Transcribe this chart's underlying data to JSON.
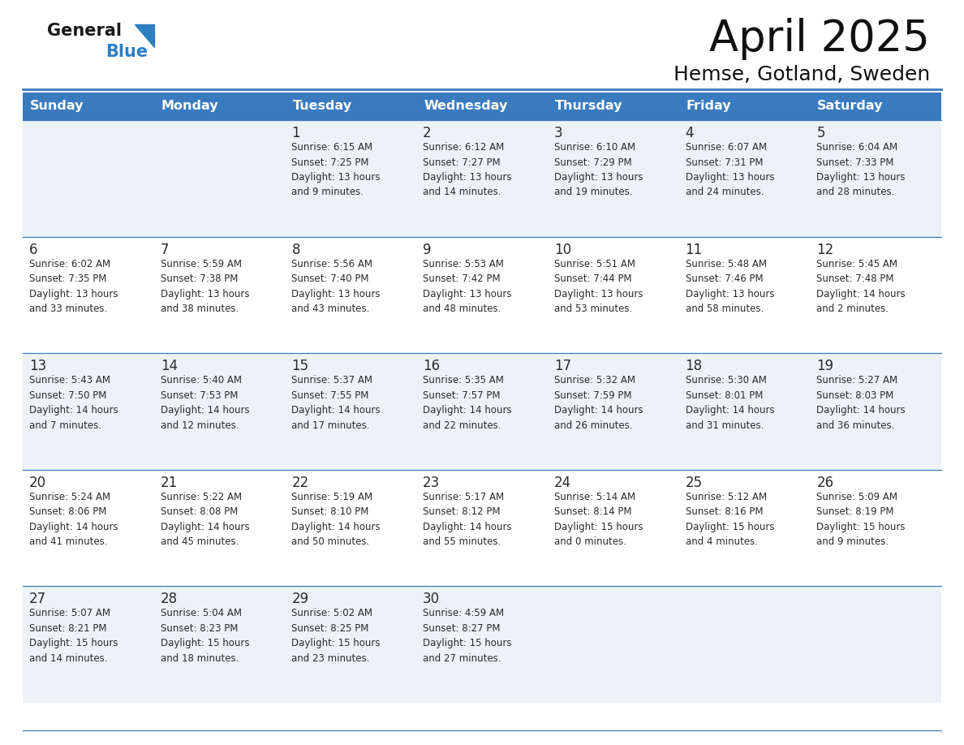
{
  "title": "April 2025",
  "subtitle": "Hemse, Gotland, Sweden",
  "header_bg": "#3a7bbf",
  "header_text": "#ffffff",
  "row_bg_light": "#eef2f7",
  "row_bg_white": "#ffffff",
  "border_color": "#3a7bbf",
  "text_color": "#2a2a2a",
  "days_of_week": [
    "Sunday",
    "Monday",
    "Tuesday",
    "Wednesday",
    "Thursday",
    "Friday",
    "Saturday"
  ],
  "weeks": [
    [
      {
        "day": "",
        "info": ""
      },
      {
        "day": "",
        "info": ""
      },
      {
        "day": "1",
        "info": "Sunrise: 6:15 AM\nSunset: 7:25 PM\nDaylight: 13 hours\nand 9 minutes."
      },
      {
        "day": "2",
        "info": "Sunrise: 6:12 AM\nSunset: 7:27 PM\nDaylight: 13 hours\nand 14 minutes."
      },
      {
        "day": "3",
        "info": "Sunrise: 6:10 AM\nSunset: 7:29 PM\nDaylight: 13 hours\nand 19 minutes."
      },
      {
        "day": "4",
        "info": "Sunrise: 6:07 AM\nSunset: 7:31 PM\nDaylight: 13 hours\nand 24 minutes."
      },
      {
        "day": "5",
        "info": "Sunrise: 6:04 AM\nSunset: 7:33 PM\nDaylight: 13 hours\nand 28 minutes."
      }
    ],
    [
      {
        "day": "6",
        "info": "Sunrise: 6:02 AM\nSunset: 7:35 PM\nDaylight: 13 hours\nand 33 minutes."
      },
      {
        "day": "7",
        "info": "Sunrise: 5:59 AM\nSunset: 7:38 PM\nDaylight: 13 hours\nand 38 minutes."
      },
      {
        "day": "8",
        "info": "Sunrise: 5:56 AM\nSunset: 7:40 PM\nDaylight: 13 hours\nand 43 minutes."
      },
      {
        "day": "9",
        "info": "Sunrise: 5:53 AM\nSunset: 7:42 PM\nDaylight: 13 hours\nand 48 minutes."
      },
      {
        "day": "10",
        "info": "Sunrise: 5:51 AM\nSunset: 7:44 PM\nDaylight: 13 hours\nand 53 minutes."
      },
      {
        "day": "11",
        "info": "Sunrise: 5:48 AM\nSunset: 7:46 PM\nDaylight: 13 hours\nand 58 minutes."
      },
      {
        "day": "12",
        "info": "Sunrise: 5:45 AM\nSunset: 7:48 PM\nDaylight: 14 hours\nand 2 minutes."
      }
    ],
    [
      {
        "day": "13",
        "info": "Sunrise: 5:43 AM\nSunset: 7:50 PM\nDaylight: 14 hours\nand 7 minutes."
      },
      {
        "day": "14",
        "info": "Sunrise: 5:40 AM\nSunset: 7:53 PM\nDaylight: 14 hours\nand 12 minutes."
      },
      {
        "day": "15",
        "info": "Sunrise: 5:37 AM\nSunset: 7:55 PM\nDaylight: 14 hours\nand 17 minutes."
      },
      {
        "day": "16",
        "info": "Sunrise: 5:35 AM\nSunset: 7:57 PM\nDaylight: 14 hours\nand 22 minutes."
      },
      {
        "day": "17",
        "info": "Sunrise: 5:32 AM\nSunset: 7:59 PM\nDaylight: 14 hours\nand 26 minutes."
      },
      {
        "day": "18",
        "info": "Sunrise: 5:30 AM\nSunset: 8:01 PM\nDaylight: 14 hours\nand 31 minutes."
      },
      {
        "day": "19",
        "info": "Sunrise: 5:27 AM\nSunset: 8:03 PM\nDaylight: 14 hours\nand 36 minutes."
      }
    ],
    [
      {
        "day": "20",
        "info": "Sunrise: 5:24 AM\nSunset: 8:06 PM\nDaylight: 14 hours\nand 41 minutes."
      },
      {
        "day": "21",
        "info": "Sunrise: 5:22 AM\nSunset: 8:08 PM\nDaylight: 14 hours\nand 45 minutes."
      },
      {
        "day": "22",
        "info": "Sunrise: 5:19 AM\nSunset: 8:10 PM\nDaylight: 14 hours\nand 50 minutes."
      },
      {
        "day": "23",
        "info": "Sunrise: 5:17 AM\nSunset: 8:12 PM\nDaylight: 14 hours\nand 55 minutes."
      },
      {
        "day": "24",
        "info": "Sunrise: 5:14 AM\nSunset: 8:14 PM\nDaylight: 15 hours\nand 0 minutes."
      },
      {
        "day": "25",
        "info": "Sunrise: 5:12 AM\nSunset: 8:16 PM\nDaylight: 15 hours\nand 4 minutes."
      },
      {
        "day": "26",
        "info": "Sunrise: 5:09 AM\nSunset: 8:19 PM\nDaylight: 15 hours\nand 9 minutes."
      }
    ],
    [
      {
        "day": "27",
        "info": "Sunrise: 5:07 AM\nSunset: 8:21 PM\nDaylight: 15 hours\nand 14 minutes."
      },
      {
        "day": "28",
        "info": "Sunrise: 5:04 AM\nSunset: 8:23 PM\nDaylight: 15 hours\nand 18 minutes."
      },
      {
        "day": "29",
        "info": "Sunrise: 5:02 AM\nSunset: 8:25 PM\nDaylight: 15 hours\nand 23 minutes."
      },
      {
        "day": "30",
        "info": "Sunrise: 4:59 AM\nSunset: 8:27 PM\nDaylight: 15 hours\nand 27 minutes."
      },
      {
        "day": "",
        "info": ""
      },
      {
        "day": "",
        "info": ""
      },
      {
        "day": "",
        "info": ""
      }
    ]
  ],
  "logo_general_color": "#1a1a1a",
  "logo_blue_color": "#2e7ec2",
  "logo_triangle_color": "#2e7ec2",
  "fig_width": 11.88,
  "fig_height": 9.18,
  "dpi": 100
}
